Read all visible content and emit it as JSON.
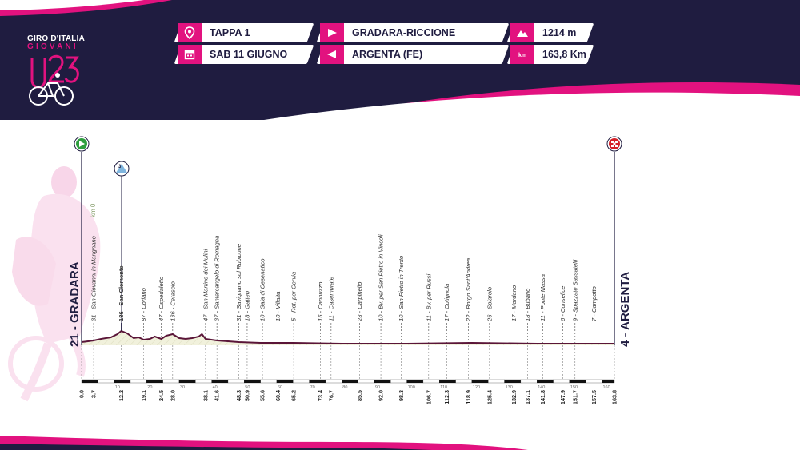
{
  "header": {
    "stage": "TAPPA 1",
    "date": "SAB 11 GIUGNO",
    "route": "GRADARA-RICCIONE",
    "finish": "ARGENTA (FE)",
    "elevation_gain": "1214 m",
    "distance_icon_text": "km",
    "distance": "163,8 Km",
    "icons": [
      "location-pin-icon",
      "calendar-icon",
      "start-arrow-icon",
      "finish-arrow-icon",
      "mountain-icon",
      "distance-icon"
    ]
  },
  "logo": {
    "line1": "GIRO D'ITALIA",
    "line2": "GIOVANI",
    "line3": "U23"
  },
  "profile": {
    "start_label": "21 - GRADARA",
    "finish_label": "4 - ARGENTA",
    "km0_label": "km 0",
    "kom_category": "3",
    "total_km": 163.8,
    "scale_ticks": [
      "10",
      "20",
      "30",
      "40",
      "50",
      "60",
      "70",
      "80",
      "90",
      "100",
      "110",
      "120",
      "130",
      "140",
      "150",
      "160"
    ],
    "waypoints": [
      {
        "km": 0.0,
        "km_label": "0.0",
        "name": "",
        "bold": true
      },
      {
        "km": 3.7,
        "km_label": "3.7",
        "name": "31 - San Giovanni in Marignano",
        "bold": false
      },
      {
        "km": 12.2,
        "km_label": "12.2",
        "name": "186 - San Clemente",
        "bold": true
      },
      {
        "km": 19.1,
        "km_label": "19.1",
        "name": "87 - Coriano",
        "bold": false
      },
      {
        "km": 24.5,
        "km_label": "24.5",
        "name": "47 - Ospedaletto",
        "bold": false
      },
      {
        "km": 28.0,
        "km_label": "28.0",
        "name": "136 - Cerasolo",
        "bold": false
      },
      {
        "km": 38.1,
        "km_label": "38.1",
        "name": "47 - San Martino dei Mulini",
        "bold": false
      },
      {
        "km": 41.6,
        "km_label": "41.6",
        "name": "37 - Santarcangelo di Romagna",
        "bold": false
      },
      {
        "km": 48.3,
        "km_label": "48.3",
        "name": "31 - Savignano sul Rubicone",
        "bold": false
      },
      {
        "km": 50.9,
        "km_label": "50.9",
        "name": "18 - Gatteo",
        "bold": false
      },
      {
        "km": 55.6,
        "km_label": "55.6",
        "name": "10 - Sala di Cesenatico",
        "bold": false
      },
      {
        "km": 60.4,
        "km_label": "60.4",
        "name": "10 - Villalta",
        "bold": false
      },
      {
        "km": 65.2,
        "km_label": "65.2",
        "name": "5 - Rot. per Cervia",
        "bold": false
      },
      {
        "km": 73.4,
        "km_label": "73.4",
        "name": "15 - Cannuzzo",
        "bold": false
      },
      {
        "km": 76.7,
        "km_label": "76.7",
        "name": "11 - Casemurate",
        "bold": false
      },
      {
        "km": 85.5,
        "km_label": "85.5",
        "name": "23 - Carpinello",
        "bold": false
      },
      {
        "km": 92.0,
        "km_label": "92.0",
        "name": "10 - Bv. per San Pietro in Vincoli",
        "bold": false
      },
      {
        "km": 98.3,
        "km_label": "98.3",
        "name": "10 - San Pietro in Trento",
        "bold": false
      },
      {
        "km": 106.7,
        "km_label": "106.7",
        "name": "11 - Bv. per Russi",
        "bold": false
      },
      {
        "km": 112.3,
        "km_label": "112.3",
        "name": "17 - Cotignola",
        "bold": false
      },
      {
        "km": 118.9,
        "km_label": "118.9",
        "name": "22 - Borgo Sant'Andrea",
        "bold": false
      },
      {
        "km": 125.4,
        "km_label": "125.4",
        "name": "26 - Solarolo",
        "bold": false
      },
      {
        "km": 132.9,
        "km_label": "132.9",
        "name": "17 - Mordano",
        "bold": false
      },
      {
        "km": 137.1,
        "km_label": "137.1",
        "name": "18 - Bubano",
        "bold": false
      },
      {
        "km": 141.8,
        "km_label": "141.8",
        "name": "11 - Ponte Massa",
        "bold": false
      },
      {
        "km": 147.9,
        "km_label": "147.9",
        "name": "6 - Conselice",
        "bold": false
      },
      {
        "km": 151.7,
        "km_label": "151.7",
        "name": "9 - Spazzate Sassatelli",
        "bold": false
      },
      {
        "km": 157.5,
        "km_label": "157.5",
        "name": "7 - Campotto",
        "bold": false
      },
      {
        "km": 163.8,
        "km_label": "163.8",
        "name": "",
        "bold": true
      }
    ],
    "colors": {
      "navy": "#1f1c40",
      "magenta": "#e2127f",
      "profile_line": "#5a1538",
      "profile_fill": "#f1f1dc",
      "start_green": "#2e9e3e",
      "finish_red": "#d42027",
      "kom_blue": "#7fb5de"
    }
  }
}
